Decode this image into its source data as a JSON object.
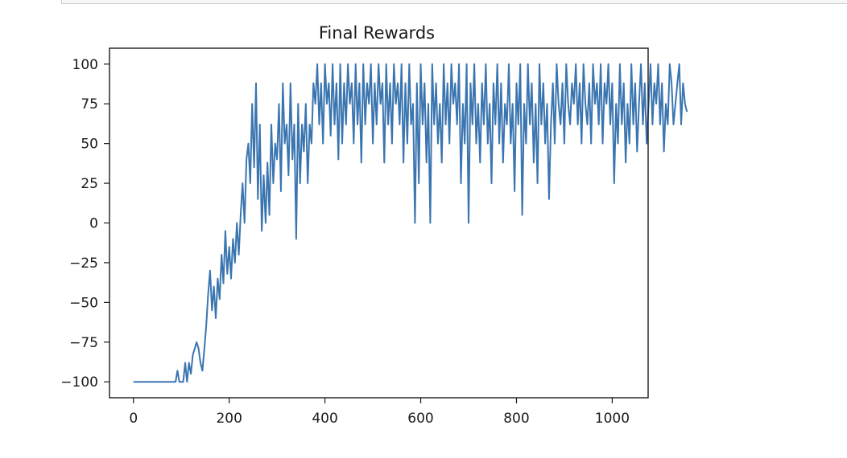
{
  "colors": {
    "line": "#3a75b0",
    "axes": "#1a1a1a"
  },
  "chart_data": {
    "type": "line",
    "title": "Final Rewards",
    "xlabel": "",
    "ylabel": "",
    "xlim": [
      -50,
      1075
    ],
    "ylim": [
      -110,
      110
    ],
    "xticks": [
      0,
      200,
      400,
      600,
      800,
      1000
    ],
    "xtick_labels": [
      "0",
      "200",
      "400",
      "600",
      "800",
      "1000"
    ],
    "yticks": [
      100,
      75,
      50,
      25,
      0,
      -25,
      -50,
      -75,
      -100
    ],
    "ytick_labels": [
      "100",
      "75",
      "50",
      "25",
      "0",
      "−25",
      "−50",
      "−75",
      "−100"
    ],
    "grid": false,
    "legend": "none",
    "series": [
      {
        "x_start": 0,
        "x_step": 4,
        "values": [
          -100,
          -100,
          -100,
          -100,
          -100,
          -100,
          -100,
          -100,
          -100,
          -100,
          -100,
          -100,
          -100,
          -100,
          -100,
          -100,
          -100,
          -100,
          -100,
          -100,
          -100,
          -100,
          -100,
          -93,
          -100,
          -100,
          -100,
          -88,
          -100,
          -88,
          -95,
          -83,
          -79,
          -75,
          -79,
          -88,
          -93,
          -80,
          -65,
          -45,
          -30,
          -55,
          -40,
          -60,
          -35,
          -48,
          -20,
          -38,
          -5,
          -32,
          -15,
          -35,
          -10,
          -25,
          0,
          -20,
          5,
          25,
          0,
          40,
          50,
          25,
          75,
          35,
          88,
          15,
          62,
          -5,
          30,
          0,
          38,
          5,
          62,
          25,
          50,
          40,
          75,
          20,
          88,
          50,
          62,
          30,
          88,
          40,
          62,
          -10,
          75,
          25,
          62,
          45,
          75,
          25,
          62,
          50,
          88,
          75,
          100,
          62,
          88,
          50,
          100,
          75,
          88,
          55,
          100,
          62,
          88,
          40,
          100,
          50,
          88,
          62,
          100,
          75,
          88,
          50,
          100,
          62,
          88,
          38,
          100,
          62,
          88,
          75,
          100,
          50,
          88,
          62,
          100,
          75,
          88,
          38,
          100,
          62,
          88,
          50,
          100,
          75,
          88,
          62,
          100,
          38,
          88,
          50,
          100,
          62,
          75,
          0,
          88,
          25,
          100,
          62,
          88,
          38,
          75,
          0,
          100,
          62,
          88,
          50,
          75,
          38,
          100,
          62,
          88,
          50,
          100,
          75,
          88,
          62,
          100,
          25,
          75,
          50,
          100,
          0,
          88,
          62,
          100,
          50,
          75,
          38,
          88,
          62,
          100,
          50,
          75,
          25,
          88,
          62,
          100,
          50,
          88,
          38,
          75,
          62,
          100,
          50,
          75,
          20,
          88,
          62,
          100,
          5,
          75,
          50,
          100,
          62,
          88,
          38,
          75,
          25,
          100,
          62,
          88,
          50,
          75,
          15,
          62,
          88,
          50,
          100,
          75,
          62,
          88,
          50,
          100,
          75,
          62,
          88,
          75,
          100,
          62,
          88,
          50,
          100,
          75,
          62,
          88,
          50,
          100,
          75,
          88,
          62,
          100,
          50,
          88,
          75,
          100,
          62,
          88,
          25,
          75,
          50,
          100,
          62,
          88,
          38,
          75,
          50,
          100,
          62,
          88,
          45,
          75,
          100,
          62,
          88,
          50,
          75,
          100,
          62,
          88,
          75,
          100,
          62,
          88,
          45,
          75,
          62,
          100,
          88,
          62,
          75,
          88,
          100,
          62,
          88,
          75,
          70
        ]
      }
    ]
  }
}
